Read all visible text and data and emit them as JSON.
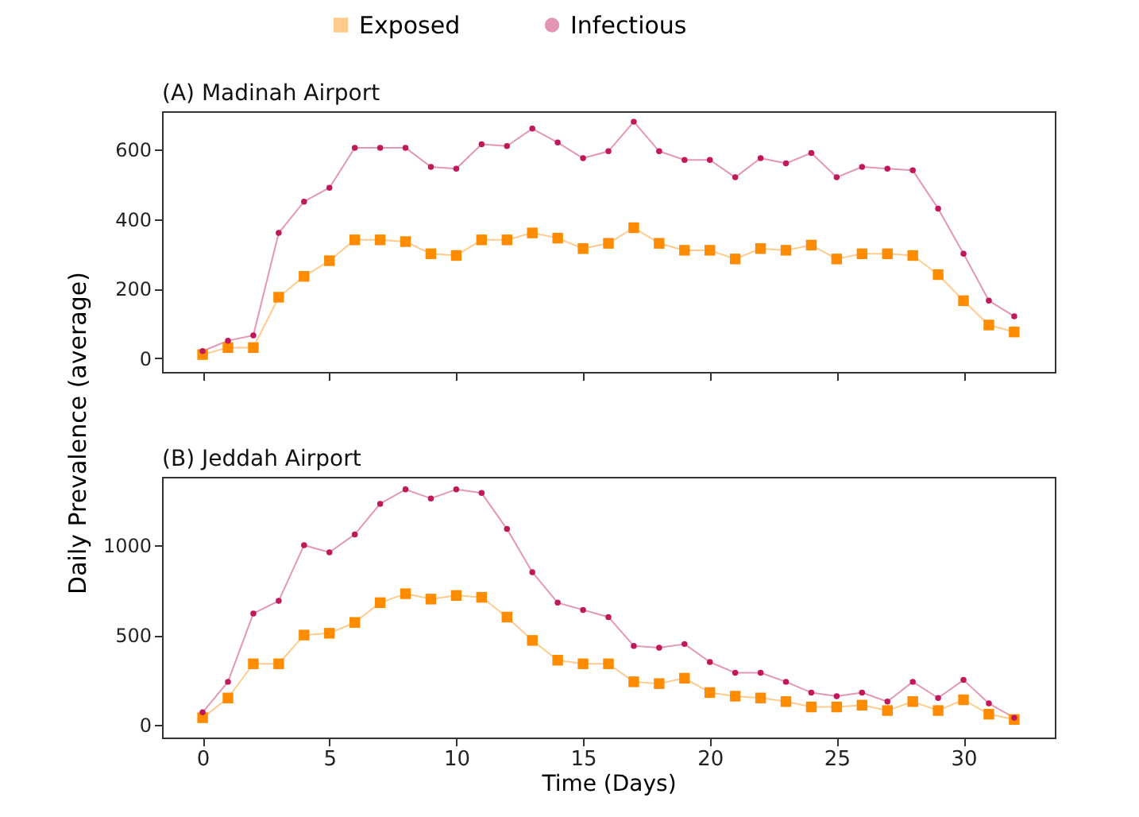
{
  "chart_data": [
    {
      "type": "line",
      "title": "(A) Madinah Airport",
      "legend": "top",
      "tick_labels": "y",
      "grid": false,
      "x": [
        0,
        1,
        2,
        3,
        4,
        5,
        6,
        7,
        8,
        9,
        10,
        11,
        12,
        13,
        14,
        15,
        16,
        17,
        18,
        19,
        20,
        21,
        22,
        23,
        24,
        25,
        26,
        27,
        28,
        29,
        30,
        31,
        32
      ],
      "xlim": [
        -1.6,
        33.6
      ],
      "xticks": [
        0,
        5,
        10,
        15,
        20,
        25,
        30
      ],
      "ylim": [
        -40,
        710
      ],
      "yticks": [
        0,
        200,
        400,
        600
      ],
      "series": [
        {
          "name": "Exposed",
          "color": "#ff8c00",
          "marker": "square",
          "values": [
            10,
            30,
            30,
            175,
            235,
            280,
            340,
            340,
            335,
            300,
            295,
            340,
            340,
            360,
            345,
            315,
            330,
            375,
            330,
            310,
            310,
            285,
            315,
            310,
            325,
            285,
            300,
            300,
            295,
            240,
            165,
            95,
            75
          ]
        },
        {
          "name": "Infectious",
          "color": "#c0185a",
          "marker": "circle",
          "values": [
            20,
            50,
            65,
            360,
            450,
            490,
            605,
            605,
            605,
            550,
            545,
            615,
            610,
            660,
            620,
            575,
            595,
            680,
            595,
            570,
            570,
            520,
            575,
            560,
            590,
            520,
            550,
            545,
            540,
            430,
            300,
            165,
            120
          ]
        }
      ]
    },
    {
      "type": "line",
      "title": "(B) Jeddah Airport",
      "grid": false,
      "xlabel": "Time (Days)",
      "ylabel": "Daily Prevalence (average)",
      "x": [
        0,
        1,
        2,
        3,
        4,
        5,
        6,
        7,
        8,
        9,
        10,
        11,
        12,
        13,
        14,
        15,
        16,
        17,
        18,
        19,
        20,
        21,
        22,
        23,
        24,
        25,
        26,
        27,
        28,
        29,
        30,
        31,
        32
      ],
      "xlim": [
        -1.6,
        33.6
      ],
      "xticks": [
        0,
        5,
        10,
        15,
        20,
        25,
        30
      ],
      "ylim": [
        -70,
        1380
      ],
      "yticks": [
        0,
        500,
        1000
      ],
      "series": [
        {
          "color": "#ff8c00",
          "marker": "square",
          "values": [
            40,
            150,
            340,
            340,
            500,
            510,
            570,
            680,
            730,
            700,
            720,
            710,
            600,
            470,
            360,
            340,
            340,
            240,
            230,
            260,
            180,
            160,
            150,
            130,
            100,
            100,
            110,
            80,
            130,
            80,
            140,
            60,
            30
          ]
        },
        {
          "color": "#c0185a",
          "marker": "circle",
          "values": [
            70,
            240,
            620,
            690,
            1000,
            960,
            1060,
            1230,
            1310,
            1260,
            1310,
            1290,
            1090,
            850,
            680,
            640,
            600,
            440,
            430,
            450,
            350,
            290,
            290,
            240,
            180,
            160,
            180,
            130,
            240,
            150,
            250,
            120,
            40
          ]
        }
      ]
    }
  ]
}
